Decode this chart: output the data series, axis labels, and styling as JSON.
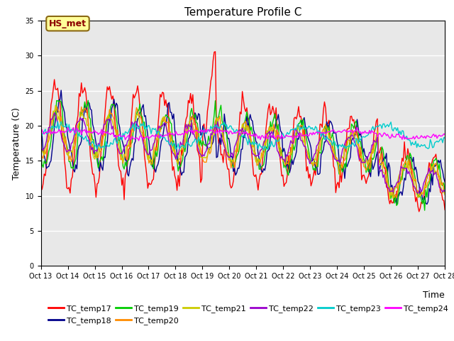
{
  "title": "Temperature Profile C",
  "xlabel": "Time",
  "ylabel": "Temperature (C)",
  "ylim": [
    0,
    35
  ],
  "yticks": [
    0,
    5,
    10,
    15,
    20,
    25,
    30,
    35
  ],
  "annotation_text": "HS_met",
  "annotation_color": "#8B0000",
  "annotation_bg": "#FFFF99",
  "series_colors": {
    "TC_temp17": "#FF0000",
    "TC_temp18": "#00008B",
    "TC_temp19": "#00CC00",
    "TC_temp20": "#FF8C00",
    "TC_temp21": "#CCCC00",
    "TC_temp22": "#9900CC",
    "TC_temp23": "#00CCCC",
    "TC_temp24": "#FF00FF"
  },
  "background_color": "#E8E8E8",
  "title_fontsize": 11,
  "axis_fontsize": 9,
  "tick_fontsize": 7,
  "legend_fontsize": 8
}
